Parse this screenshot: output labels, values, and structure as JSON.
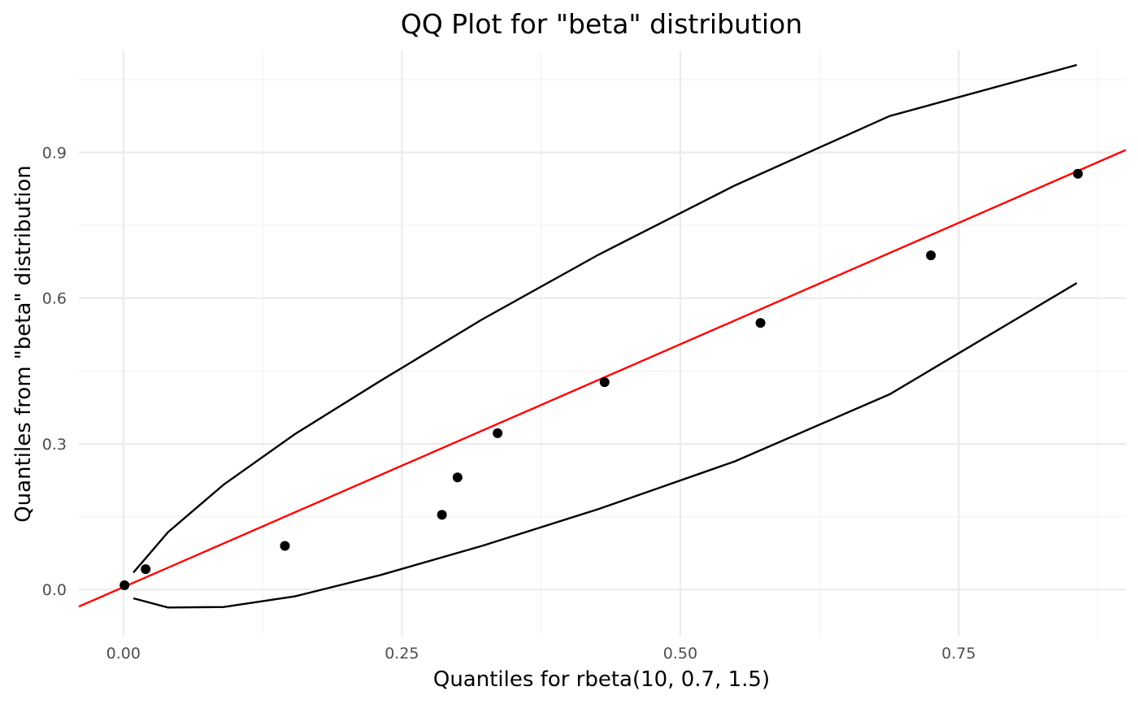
{
  "chart_data": {
    "type": "scatter",
    "title": "QQ Plot for \"beta\" distribution",
    "xlabel": "Quantiles for rbeta(10, 0.7, 1.5)",
    "ylabel": "Quantiles from \"beta\" distribution",
    "xlim": [
      -0.04,
      0.9
    ],
    "ylim": [
      -0.095,
      1.11
    ],
    "x_ticks": [
      0.0,
      0.25,
      0.5,
      0.75
    ],
    "x_tick_labels": [
      "0.00",
      "0.25",
      "0.50",
      "0.75"
    ],
    "x_minor_ticks": [
      0.125,
      0.375,
      0.625,
      0.875
    ],
    "y_ticks": [
      0.0,
      0.3,
      0.6,
      0.9
    ],
    "y_tick_labels": [
      "0.0",
      "0.3",
      "0.6",
      "0.9"
    ],
    "y_minor_ticks": [
      0.15,
      0.45,
      0.75,
      1.05
    ],
    "grid": true,
    "points": [
      {
        "x": 0.001,
        "y": 0.009
      },
      {
        "x": 0.02,
        "y": 0.042
      },
      {
        "x": 0.145,
        "y": 0.09
      },
      {
        "x": 0.286,
        "y": 0.154
      },
      {
        "x": 0.3,
        "y": 0.231
      },
      {
        "x": 0.336,
        "y": 0.322
      },
      {
        "x": 0.432,
        "y": 0.427
      },
      {
        "x": 0.572,
        "y": 0.549
      },
      {
        "x": 0.725,
        "y": 0.688
      },
      {
        "x": 0.857,
        "y": 0.856
      }
    ],
    "reference_line": {
      "slope": 1.0,
      "intercept": 0.005,
      "color": "#ff0000"
    },
    "upper_band": [
      {
        "x": 0.009,
        "y": 0.035
      },
      {
        "x": 0.04,
        "y": 0.118
      },
      {
        "x": 0.09,
        "y": 0.216
      },
      {
        "x": 0.154,
        "y": 0.32
      },
      {
        "x": 0.231,
        "y": 0.43
      },
      {
        "x": 0.322,
        "y": 0.556
      },
      {
        "x": 0.427,
        "y": 0.69
      },
      {
        "x": 0.549,
        "y": 0.832
      },
      {
        "x": 0.688,
        "y": 0.975
      },
      {
        "x": 0.856,
        "y": 1.08
      }
    ],
    "lower_band": [
      {
        "x": 0.009,
        "y": -0.018
      },
      {
        "x": 0.04,
        "y": -0.037
      },
      {
        "x": 0.09,
        "y": -0.036
      },
      {
        "x": 0.154,
        "y": -0.014
      },
      {
        "x": 0.231,
        "y": 0.03
      },
      {
        "x": 0.322,
        "y": 0.09
      },
      {
        "x": 0.427,
        "y": 0.166
      },
      {
        "x": 0.549,
        "y": 0.264
      },
      {
        "x": 0.688,
        "y": 0.402
      },
      {
        "x": 0.856,
        "y": 0.631
      }
    ],
    "colors": {
      "points": "#000000",
      "bands": "#000000",
      "reference": "#ff0000",
      "grid": "#ebebeb"
    }
  }
}
